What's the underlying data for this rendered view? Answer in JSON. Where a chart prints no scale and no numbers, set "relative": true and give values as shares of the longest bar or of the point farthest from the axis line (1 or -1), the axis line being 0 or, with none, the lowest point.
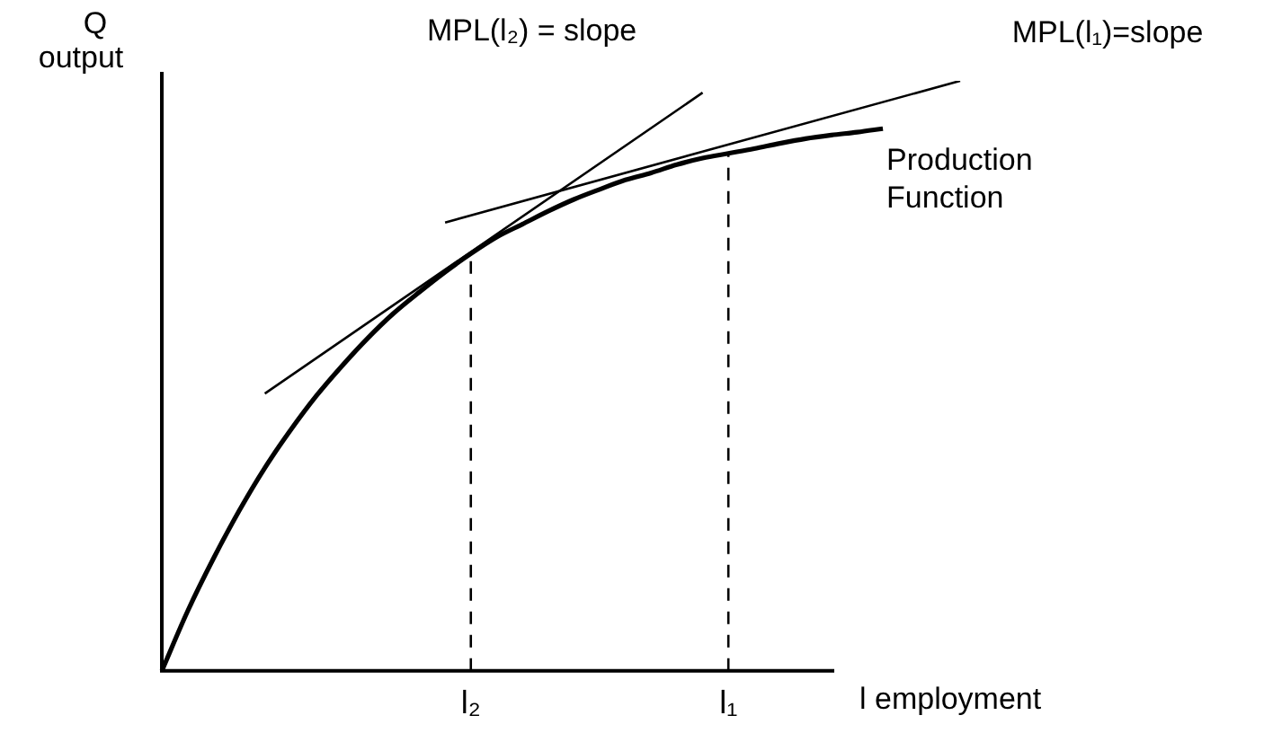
{
  "chart_data": {
    "type": "line",
    "relative": true,
    "ylabel": "Q\noutput",
    "xlabel": "l employment",
    "categories": [
      null,
      null,
      null,
      null,
      null,
      null,
      null,
      null,
      null,
      null,
      null,
      null,
      "l₂",
      null,
      null,
      null,
      null,
      null,
      null,
      null,
      null,
      null,
      "l₁",
      null,
      null,
      null,
      null,
      null,
      null,
      null,
      null,
      null
    ],
    "series": [
      {
        "name": "Production Function",
        "color": "#000000",
        "values": [
          0,
          0.101,
          0.19,
          0.271,
          0.344,
          0.408,
          0.466,
          0.517,
          0.564,
          0.606,
          0.642,
          0.676,
          0.707,
          0.735,
          0.757,
          0.779,
          0.799,
          0.816,
          0.832,
          0.844,
          0.858,
          0.869,
          0.877,
          0.885,
          0.894,
          0.902,
          0.908,
          0.913,
          0.919,
          null,
          null,
          null
        ]
      },
      {
        "name": "MPL(l₂) = slope",
        "color": "#000000",
        "values": [
          null,
          null,
          null,
          null,
          0.47,
          null,
          null,
          null,
          null,
          null,
          null,
          null,
          null,
          null,
          null,
          null,
          null,
          null,
          null,
          null,
          null,
          0.98,
          null,
          null,
          null,
          null,
          null,
          null,
          null,
          null,
          null,
          null
        ]
      },
      {
        "name": "MPL(l₁)=slope",
        "color": "#000000",
        "values": [
          null,
          null,
          null,
          null,
          null,
          null,
          null,
          null,
          null,
          null,
          null,
          0.76,
          null,
          null,
          null,
          null,
          null,
          null,
          null,
          null,
          null,
          null,
          null,
          null,
          null,
          null,
          null,
          null,
          null,
          null,
          null,
          1.0
        ]
      }
    ],
    "ref_lines": [
      {
        "axis": "x",
        "value": "l₂",
        "line_style": "dashed"
      },
      {
        "axis": "x",
        "value": "l₁",
        "line_style": "dashed"
      }
    ],
    "legend": false,
    "grid": false,
    "marker": "none"
  }
}
